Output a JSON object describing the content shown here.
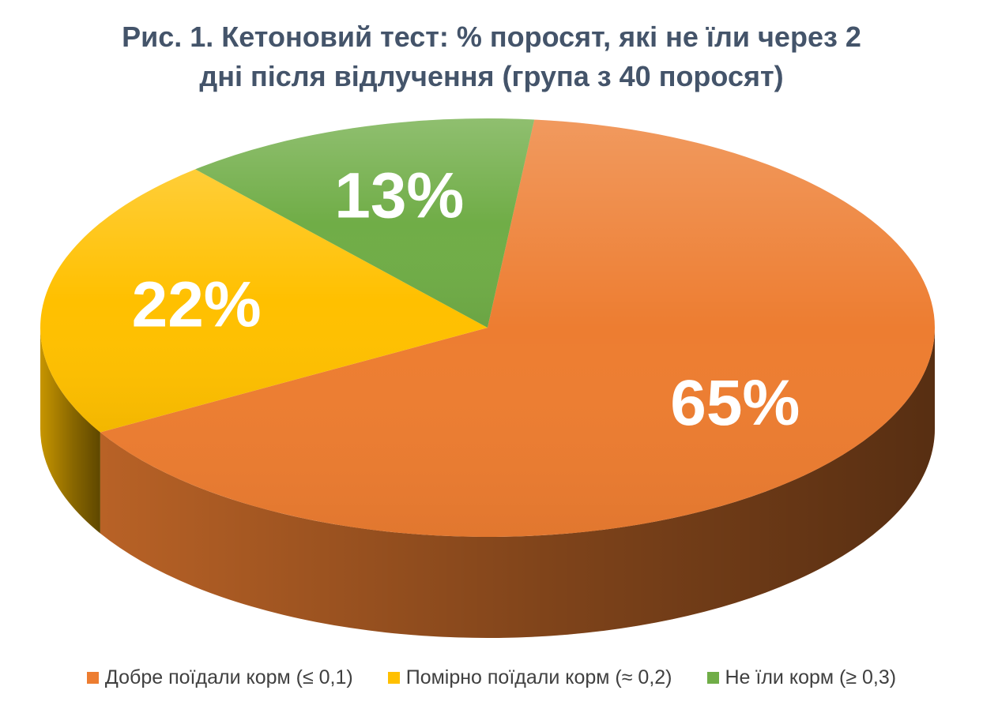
{
  "chart_data": {
    "type": "pie",
    "title_lines": [
      "Рис. 1. Кетоновий тест: % поросят, які не їли через 2",
      "дні після відлучення (група з 40 поросят)"
    ],
    "slices": [
      {
        "name": "Добре поїдали корм (≤ 0,1)",
        "value": 65,
        "label": "65%",
        "color": "#ed7d31"
      },
      {
        "name": "Помірно поїдали корм (≈ 0,2)",
        "value": 22,
        "label": "22%",
        "color": "#ffc000"
      },
      {
        "name": "Не їли корм (≥ 0,3)",
        "value": 13,
        "label": "13%",
        "color": "#70ad47"
      }
    ],
    "legend_position": "bottom",
    "data_label_color": "#ffffff",
    "title_color": "#44546a"
  }
}
